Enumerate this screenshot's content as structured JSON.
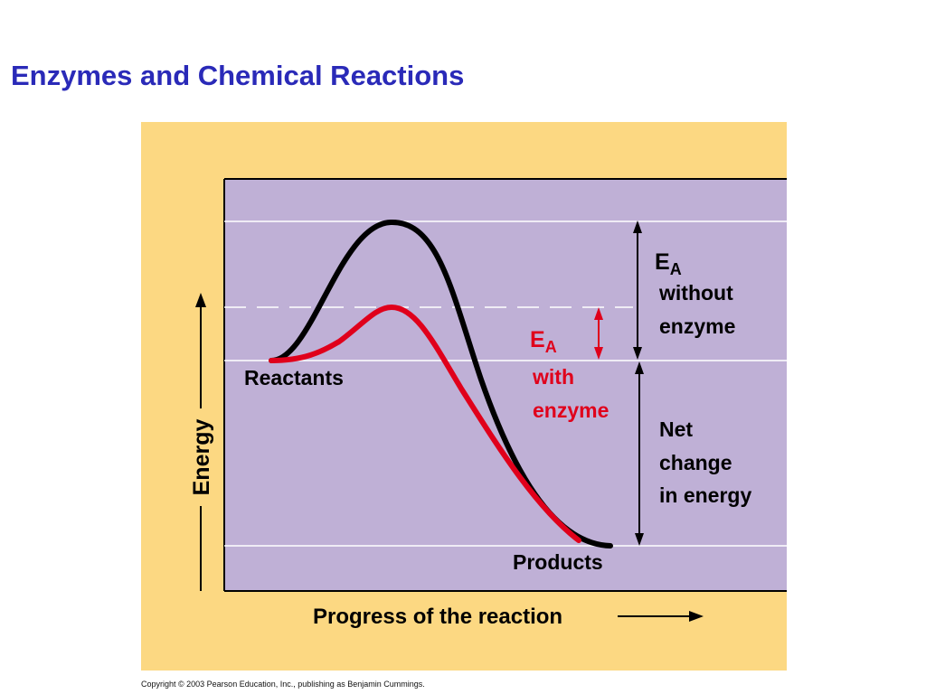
{
  "slide": {
    "title": "Enzymes and Chemical Reactions",
    "copyright": "Copyright © 2003 Pearson Education, Inc., publishing as Benjamin Cummings."
  },
  "diagram": {
    "y_axis_label": "Energy",
    "x_axis_label": "Progress of the reaction",
    "reactants_label": "Reactants",
    "products_label": "Products",
    "ea_without": {
      "symbol": "E",
      "subscript": "A",
      "line1": "without",
      "line2": "enzyme"
    },
    "ea_with": {
      "symbol": "E",
      "subscript": "A",
      "line1": "with",
      "line2": "enzyme"
    },
    "net_change": {
      "line1": "Net",
      "line2": "change",
      "line3": "in energy"
    }
  },
  "colors": {
    "title": "#2a2ab8",
    "frame": "#fcd882",
    "plot_bg": "#bfb0d6",
    "without_enzyme_curve": "#000000",
    "with_enzyme_curve": "#e0001b"
  }
}
